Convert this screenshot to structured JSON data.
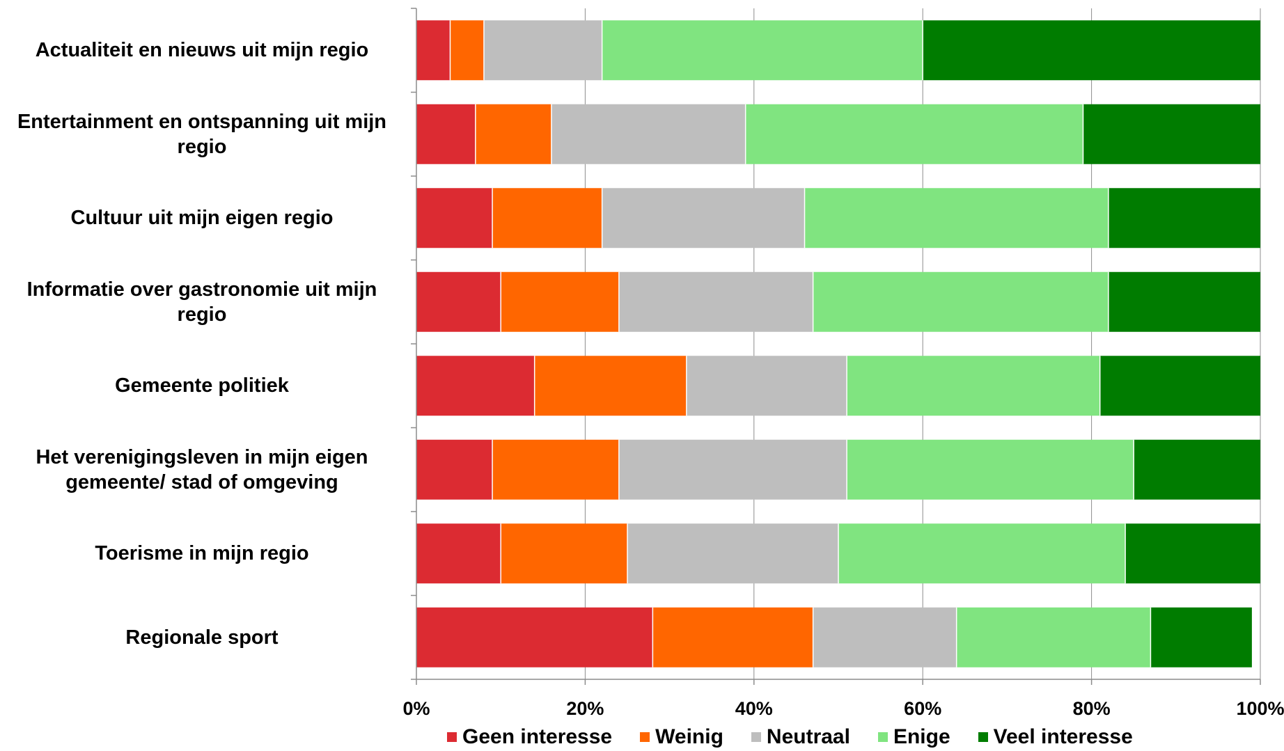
{
  "chart_data": {
    "type": "bar",
    "orientation": "horizontal",
    "stacked": "percent",
    "categories": [
      "Actualiteit en nieuws uit mijn regio",
      "Entertainment en ontspanning uit mijn regio",
      "Cultuur uit mijn eigen regio",
      "Informatie over gastronomie uit mijn regio",
      "Gemeente politiek",
      "Het verenigingsleven in mijn eigen gemeente/ stad of omgeving",
      "Toerisme in mijn regio",
      "Regionale sport"
    ],
    "series": [
      {
        "name": "Geen interesse",
        "color": "#dc2b32",
        "values": [
          4,
          7,
          9,
          10,
          14,
          9,
          10,
          28
        ]
      },
      {
        "name": "Weinig",
        "color": "#ff6600",
        "values": [
          4,
          9,
          13,
          14,
          18,
          15,
          15,
          19
        ]
      },
      {
        "name": "Neutraal",
        "color": "#bebebe",
        "values": [
          14,
          23,
          24,
          23,
          19,
          27,
          25,
          17
        ]
      },
      {
        "name": "Enige",
        "color": "#80e480",
        "values": [
          38,
          40,
          36,
          35,
          30,
          34,
          34,
          23
        ]
      },
      {
        "name": "Veel interesse",
        "color": "#007c00",
        "values": [
          40,
          21,
          18,
          18,
          19,
          15,
          16,
          12
        ]
      }
    ],
    "xlim": [
      0,
      100
    ],
    "xticks": [
      "0%",
      "20%",
      "40%",
      "60%",
      "80%",
      "100%"
    ],
    "grid": true,
    "legend_position": "bottom",
    "title": "",
    "xlabel": "",
    "ylabel": ""
  }
}
